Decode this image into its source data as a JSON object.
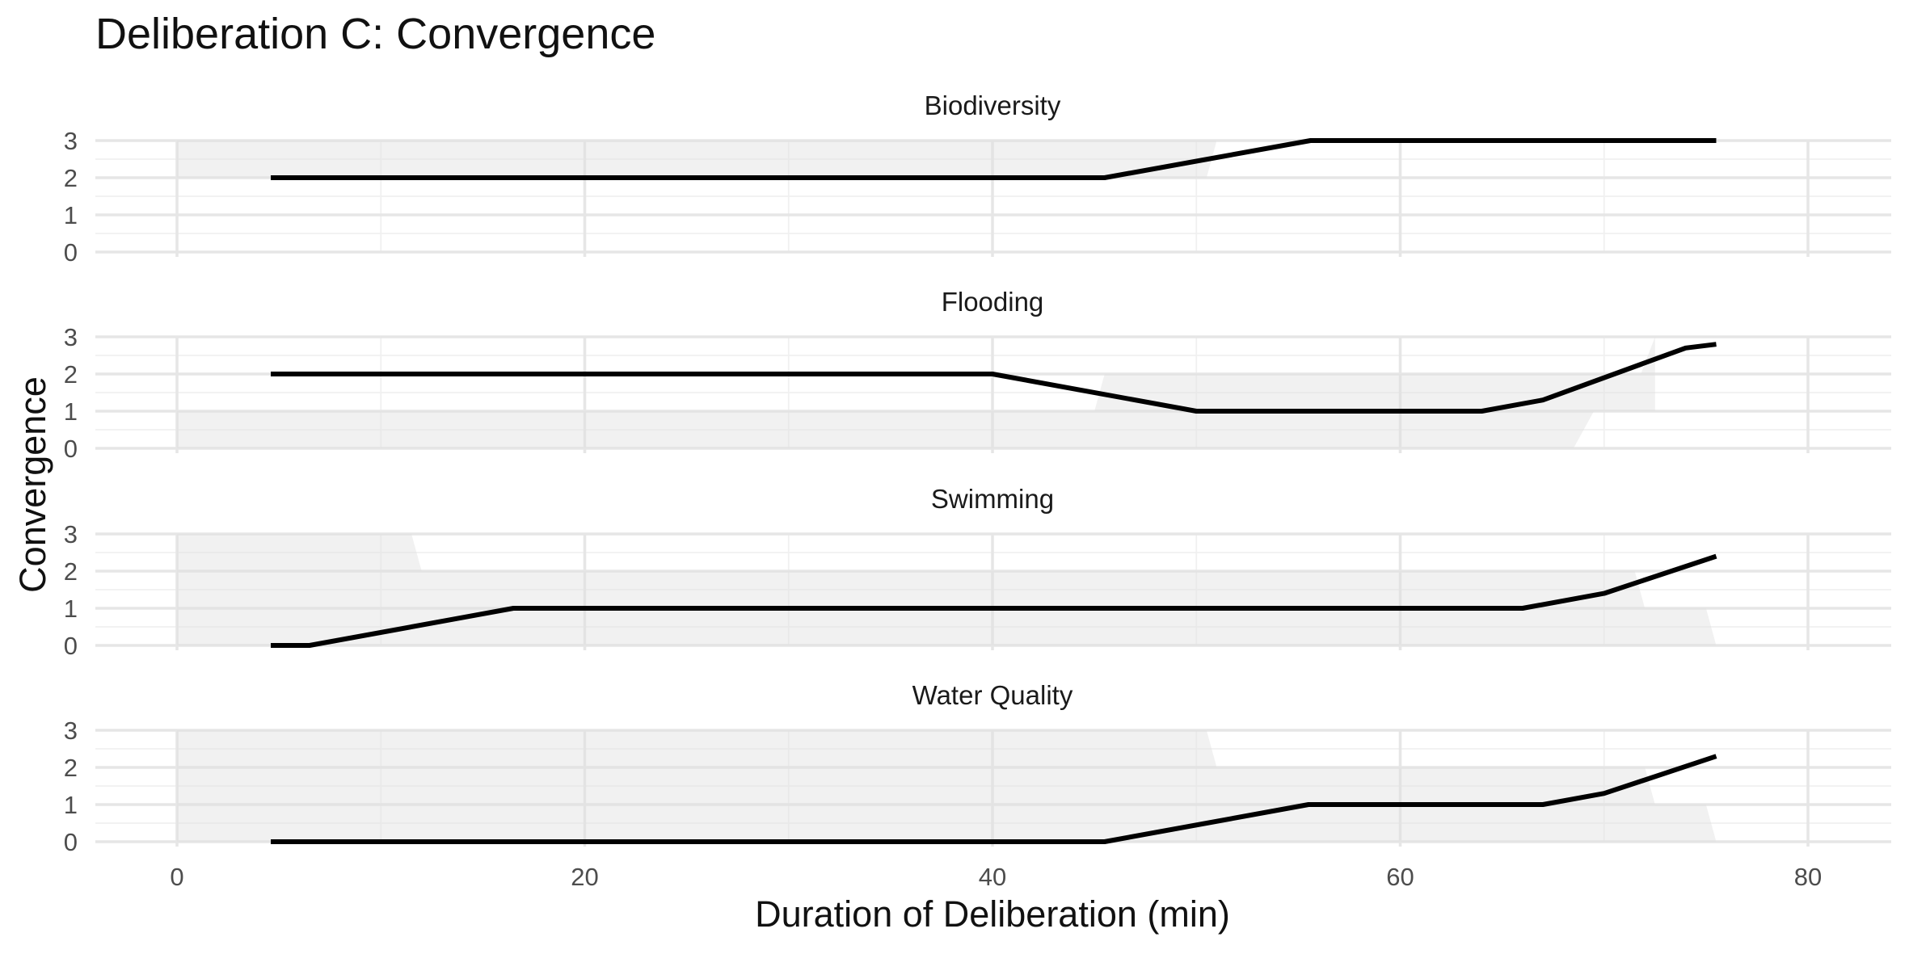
{
  "chart_data": {
    "type": "line",
    "title": "Deliberation C: Convergence",
    "xlabel": "Duration of Deliberation (min)",
    "ylabel": "Convergence",
    "xlim": [
      -10,
      84
    ],
    "ylim": [
      0,
      3
    ],
    "x_ticks": [
      "0",
      "20",
      "40",
      "60",
      "80"
    ],
    "x_tick_values": [
      0,
      20,
      40,
      60,
      80
    ],
    "y_ticks": [
      "0",
      "1",
      "2",
      "3"
    ],
    "y_tick_values": [
      0,
      1,
      2,
      3
    ],
    "grid": true,
    "legend": "none",
    "line_color": "#000000",
    "band_color": "#e0e0e0",
    "panels": [
      {
        "name": "Biodiversity",
        "line": [
          [
            4.6,
            2
          ],
          [
            45.5,
            2
          ],
          [
            55.6,
            3
          ],
          [
            75.5,
            3
          ]
        ],
        "band": [
          [
            0,
            2,
            3
          ],
          [
            50.5,
            2,
            3
          ],
          [
            51,
            3,
            3
          ]
        ]
      },
      {
        "name": "Flooding",
        "line": [
          [
            4.6,
            2
          ],
          [
            40,
            2
          ],
          [
            50,
            1
          ],
          [
            64,
            1
          ],
          [
            67,
            1.3
          ],
          [
            74,
            2.7
          ],
          [
            75.5,
            2.8
          ]
        ],
        "band": [
          [
            0,
            0,
            1
          ],
          [
            45,
            0,
            1
          ],
          [
            45.5,
            0,
            2
          ],
          [
            68.5,
            0,
            2
          ],
          [
            69.5,
            1,
            2
          ],
          [
            71.8,
            1,
            2
          ],
          [
            72.5,
            1,
            3
          ]
        ]
      },
      {
        "name": "Swimming",
        "line": [
          [
            4.6,
            0
          ],
          [
            6.5,
            0
          ],
          [
            16.5,
            1
          ],
          [
            66,
            1
          ],
          [
            70,
            1.4
          ],
          [
            75.5,
            2.4
          ]
        ],
        "band": [
          [
            0,
            0,
            3
          ],
          [
            11.5,
            0,
            3
          ],
          [
            12,
            0,
            2
          ],
          [
            71.5,
            0,
            2
          ],
          [
            72,
            0,
            1
          ],
          [
            75,
            0,
            1
          ],
          [
            75.5,
            0,
            0
          ]
        ]
      },
      {
        "name": "Water Quality",
        "line": [
          [
            4.6,
            0
          ],
          [
            45.5,
            0
          ],
          [
            55.5,
            1
          ],
          [
            67,
            1
          ],
          [
            70,
            1.3
          ],
          [
            75.5,
            2.3
          ]
        ],
        "band": [
          [
            0,
            0,
            3
          ],
          [
            50.5,
            0,
            3
          ],
          [
            51,
            0,
            2
          ],
          [
            72,
            0,
            2
          ],
          [
            72.5,
            0,
            1
          ],
          [
            75,
            0,
            1
          ],
          [
            75.5,
            0,
            0
          ]
        ]
      }
    ]
  }
}
